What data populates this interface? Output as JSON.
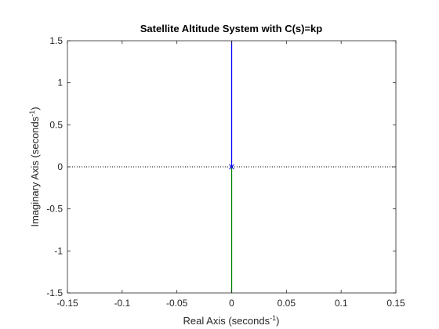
{
  "chart_data": {
    "type": "root-locus",
    "title": "Satellite Altitude System with C(s)=kp",
    "xlabel": {
      "main": "Real Axis (seconds",
      "sup": "-1",
      "end": ")"
    },
    "ylabel": {
      "main": "Imaginary Axis (seconds",
      "sup": "-1",
      "end": ")"
    },
    "xlim": [
      -0.15,
      0.15
    ],
    "ylim": [
      -1.5,
      1.5
    ],
    "xticks": [
      -0.15,
      -0.1,
      -0.05,
      0,
      0.05,
      0.1,
      0.15
    ],
    "xtick_labels": [
      "-0.15",
      "-0.1",
      "-0.05",
      "0",
      "0.05",
      "0.1",
      "0.15"
    ],
    "yticks": [
      -1.5,
      -1,
      -0.5,
      0,
      0.5,
      1,
      1.5
    ],
    "ytick_labels": [
      "-1.5",
      "-1",
      "-0.5",
      "0",
      "0.5",
      "1",
      "1.5"
    ],
    "grid": false,
    "branches": [
      {
        "color": "#0000ff",
        "points": [
          [
            0,
            0
          ],
          [
            0,
            1.5
          ]
        ]
      },
      {
        "color": "#008000",
        "points": [
          [
            0,
            0
          ],
          [
            0,
            -1.5
          ]
        ]
      }
    ],
    "poles": [
      {
        "x": 0,
        "y": 0,
        "marker": "x",
        "color": "#0000ff"
      }
    ],
    "zero_line": {
      "y": 0,
      "style": "dotted",
      "color": "#000000"
    }
  }
}
